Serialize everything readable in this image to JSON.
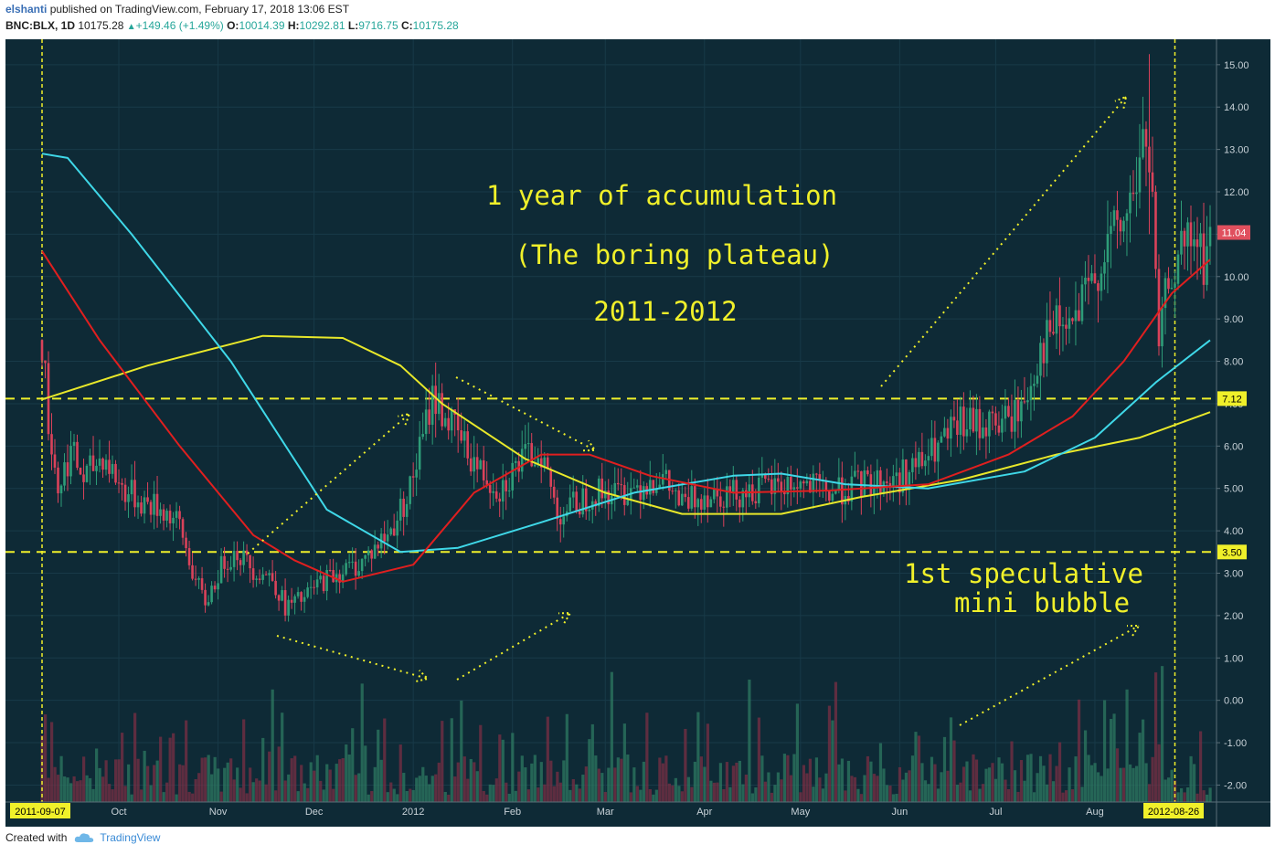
{
  "header": {
    "author": "elshanti",
    "published": "published on TradingView.com, February 17, 2018 13:06 EST",
    "symbol": "BNC:BLX, 1D",
    "last": "10175.28",
    "change": "+149.46 (+1.49%)",
    "o_label": "O:",
    "o_value": "10014.39",
    "h_label": "H:",
    "h_value": "10292.81",
    "l_label": "L:",
    "l_value": "9716.75",
    "c_label": "C:",
    "c_value": "10175.28"
  },
  "footer": {
    "created_with": "Created with",
    "brand": "TradingView"
  },
  "colors": {
    "background": "#0e2a36",
    "up": "#2e9c78",
    "down": "#d9425a",
    "ma_red": "#e01f1f",
    "ma_cyan": "#3fd8e8",
    "ma_yellow": "#e8e82a",
    "annotation": "#f0f02a",
    "axis_text": "#c8d2d8"
  },
  "annotations": {
    "line1": "1 year of accumulation",
    "line2": "(The boring plateau)",
    "line3": "2011-2012",
    "bubble1": "1st speculative",
    "bubble2": "mini bubble"
  },
  "markers": {
    "start": "2011-09-07",
    "end": "2012-08-26",
    "level_high": "7.12",
    "level_low": "3.50",
    "last_price": "11.04"
  },
  "chart_data": {
    "type": "candlestick",
    "x_ticks": [
      "Oct",
      "Nov",
      "Dec",
      "2012",
      "Feb",
      "Mar",
      "Apr",
      "May",
      "Jun",
      "Jul",
      "Aug"
    ],
    "y_ticks": [
      "15.00",
      "14.00",
      "13.00",
      "12.00",
      "11.00",
      "10.00",
      "9.00",
      "8.00",
      "7.00",
      "6.00",
      "5.00",
      "4.00",
      "3.00",
      "2.00",
      "1.00",
      "0.00",
      "-1.00",
      "-2.00"
    ],
    "ylim": [
      -2.4,
      15.6
    ],
    "xlim": [
      "2011-09-07",
      "2012-09-06"
    ],
    "horizontal_levels": [
      7.12,
      3.5
    ],
    "vertical_markers": [
      "2011-09-07",
      "2012-08-26"
    ],
    "close_path": [
      [
        "2011-09-07",
        8.5
      ],
      [
        "2011-09-09",
        6.6
      ],
      [
        "2011-09-12",
        5.0
      ],
      [
        "2011-09-16",
        5.9
      ],
      [
        "2011-09-20",
        5.2
      ],
      [
        "2011-09-26",
        5.8
      ],
      [
        "2011-10-02",
        5.0
      ],
      [
        "2011-10-08",
        4.7
      ],
      [
        "2011-10-15",
        4.5
      ],
      [
        "2011-10-20",
        4.1
      ],
      [
        "2011-10-25",
        2.8
      ],
      [
        "2011-10-28",
        2.3
      ],
      [
        "2011-11-03",
        3.3
      ],
      [
        "2011-11-07",
        3.5
      ],
      [
        "2011-11-12",
        3.1
      ],
      [
        "2011-11-18",
        2.9
      ],
      [
        "2011-11-22",
        2.2
      ],
      [
        "2011-11-28",
        2.4
      ],
      [
        "2011-12-03",
        2.8
      ],
      [
        "2011-12-08",
        3.0
      ],
      [
        "2011-12-15",
        3.2
      ],
      [
        "2011-12-20",
        3.6
      ],
      [
        "2011-12-25",
        4.0
      ],
      [
        "2011-12-31",
        5.0
      ],
      [
        "2012-01-04",
        6.2
      ],
      [
        "2012-01-07",
        7.2
      ],
      [
        "2012-01-12",
        6.6
      ],
      [
        "2012-01-17",
        6.0
      ],
      [
        "2012-01-22",
        5.4
      ],
      [
        "2012-01-28",
        5.0
      ],
      [
        "2012-02-03",
        5.6
      ],
      [
        "2012-02-10",
        5.9
      ],
      [
        "2012-02-15",
        4.4
      ],
      [
        "2012-02-20",
        4.6
      ],
      [
        "2012-02-26",
        4.9
      ],
      [
        "2012-03-05",
        4.9
      ],
      [
        "2012-03-12",
        5.1
      ],
      [
        "2012-03-18",
        5.3
      ],
      [
        "2012-03-25",
        4.6
      ],
      [
        "2012-04-01",
        4.9
      ],
      [
        "2012-04-10",
        4.9
      ],
      [
        "2012-04-20",
        5.0
      ],
      [
        "2012-04-30",
        5.1
      ],
      [
        "2012-05-10",
        4.9
      ],
      [
        "2012-05-20",
        5.1
      ],
      [
        "2012-05-31",
        5.2
      ],
      [
        "2012-06-08",
        5.6
      ],
      [
        "2012-06-15",
        6.1
      ],
      [
        "2012-06-20",
        6.5
      ],
      [
        "2012-06-27",
        6.5
      ],
      [
        "2012-07-05",
        6.6
      ],
      [
        "2012-07-10",
        7.0
      ],
      [
        "2012-07-15",
        8.3
      ],
      [
        "2012-07-20",
        8.8
      ],
      [
        "2012-07-25",
        8.8
      ],
      [
        "2012-07-31",
        9.8
      ],
      [
        "2012-08-05",
        10.8
      ],
      [
        "2012-08-10",
        11.2
      ],
      [
        "2012-08-14",
        12.3
      ],
      [
        "2012-08-17",
        13.4
      ],
      [
        "2012-08-19",
        11.5
      ],
      [
        "2012-08-21",
        8.2
      ],
      [
        "2012-08-24",
        10.0
      ],
      [
        "2012-08-28",
        10.5
      ],
      [
        "2012-09-01",
        10.9
      ],
      [
        "2012-09-04",
        10.3
      ],
      [
        "2012-09-06",
        11.04
      ]
    ],
    "ma_red": [
      [
        "2011-09-07",
        10.6
      ],
      [
        "2011-09-25",
        8.5
      ],
      [
        "2011-10-20",
        6.0
      ],
      [
        "2011-11-12",
        3.9
      ],
      [
        "2011-11-25",
        3.3
      ],
      [
        "2011-12-10",
        2.8
      ],
      [
        "2012-01-01",
        3.2
      ],
      [
        "2012-01-20",
        4.9
      ],
      [
        "2012-02-10",
        5.8
      ],
      [
        "2012-02-25",
        5.8
      ],
      [
        "2012-03-15",
        5.3
      ],
      [
        "2012-04-10",
        4.9
      ],
      [
        "2012-05-10",
        4.95
      ],
      [
        "2012-06-10",
        5.1
      ],
      [
        "2012-07-05",
        5.8
      ],
      [
        "2012-07-25",
        6.7
      ],
      [
        "2012-08-10",
        8.0
      ],
      [
        "2012-08-25",
        9.6
      ],
      [
        "2012-09-06",
        10.4
      ]
    ],
    "ma_cyan": [
      [
        "2011-09-07",
        12.9
      ],
      [
        "2011-09-15",
        12.8
      ],
      [
        "2011-10-05",
        11.0
      ],
      [
        "2011-11-05",
        8.0
      ],
      [
        "2011-12-05",
        4.5
      ],
      [
        "2011-12-28",
        3.5
      ],
      [
        "2012-01-15",
        3.6
      ],
      [
        "2012-02-10",
        4.2
      ],
      [
        "2012-03-10",
        4.9
      ],
      [
        "2012-04-10",
        5.3
      ],
      [
        "2012-04-25",
        5.35
      ],
      [
        "2012-05-15",
        5.1
      ],
      [
        "2012-06-10",
        5.0
      ],
      [
        "2012-07-10",
        5.4
      ],
      [
        "2012-08-01",
        6.2
      ],
      [
        "2012-08-20",
        7.5
      ],
      [
        "2012-09-06",
        8.5
      ]
    ],
    "ma_yellow": [
      [
        "2011-09-07",
        7.1
      ],
      [
        "2011-10-10",
        7.9
      ],
      [
        "2011-11-15",
        8.6
      ],
      [
        "2011-12-10",
        8.55
      ],
      [
        "2011-12-28",
        7.9
      ],
      [
        "2012-01-10",
        7.0
      ],
      [
        "2012-02-05",
        5.7
      ],
      [
        "2012-03-01",
        4.9
      ],
      [
        "2012-03-25",
        4.4
      ],
      [
        "2012-04-25",
        4.4
      ],
      [
        "2012-05-20",
        4.8
      ],
      [
        "2012-06-20",
        5.2
      ],
      [
        "2012-07-20",
        5.8
      ],
      [
        "2012-08-15",
        6.2
      ],
      [
        "2012-09-06",
        6.8
      ]
    ]
  }
}
